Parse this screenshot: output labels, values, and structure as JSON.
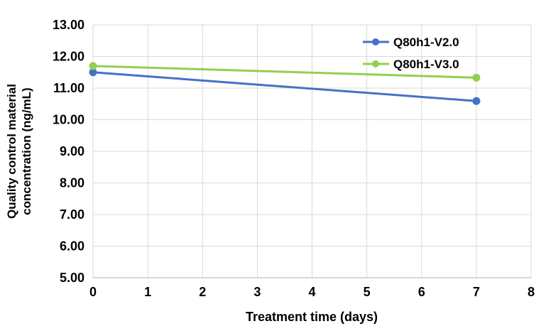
{
  "chart_data": {
    "type": "line",
    "title": "",
    "xlabel": "Treatment time (days)",
    "ylabel_line1": "Quality control material",
    "ylabel_line2": "concentration (ng/mL)",
    "xlim": [
      0,
      8
    ],
    "ylim": [
      5,
      13
    ],
    "x_ticks": [
      "0",
      "1",
      "2",
      "3",
      "4",
      "5",
      "6",
      "7",
      "8"
    ],
    "y_ticks": [
      "13.00",
      "12.00",
      "11.00",
      "10.00",
      "9.00",
      "8.00",
      "7.00",
      "6.00",
      "5.00"
    ],
    "grid": true,
    "legend_position": "top-right-inside",
    "x": [
      0,
      7
    ],
    "series": [
      {
        "name": "Q80h1-V2.0",
        "color": "#4472C4",
        "values": [
          11.5,
          10.59
        ]
      },
      {
        "name": "Q80h1-V3.0",
        "color": "#92D050",
        "values": [
          11.7,
          11.33
        ]
      }
    ],
    "colors": {
      "gridline": "#D9D9D9",
      "axis_line": "#BFBFBF",
      "text": "#000000",
      "background": "#FFFFFF"
    }
  }
}
